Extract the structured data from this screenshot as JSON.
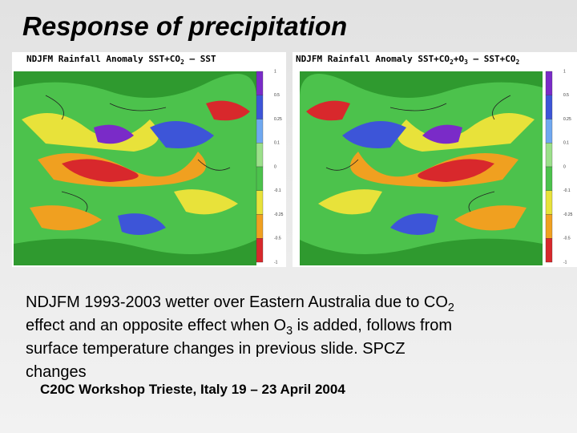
{
  "title": "Response of precipitation",
  "maps": [
    {
      "header": [
        {
          "text": "NDJFM Rainfall Anomaly SST+CO",
          "sub": "2"
        },
        {
          "text": " – SST"
        }
      ]
    },
    {
      "header": [
        {
          "text": "NDJFM Rainfall Anomaly SST+CO",
          "sub": "2"
        },
        {
          "text": "+O",
          "sub": "3"
        },
        {
          "text": " – SST+CO",
          "sub": "2"
        }
      ]
    }
  ],
  "colorbar_labels": [
    "1",
    "0.5",
    "0.25",
    "0.1",
    "0",
    "-0.1",
    "-0.25",
    "-0.5",
    "-1"
  ],
  "body": {
    "lines": [
      [
        {
          "text": "NDJFM 1993-2003 wetter over Eastern Australia due to CO",
          "sub": "2"
        }
      ],
      [
        {
          "text": "effect and an opposite effect when O",
          "sub": "3"
        },
        {
          "text": " is added, follows from"
        }
      ],
      [
        {
          "text": "surface temperature changes in previous slide. SPCZ"
        }
      ],
      [
        {
          "text": "changes"
        }
      ]
    ]
  },
  "footer": "C20C Workshop Trieste, Italy 19 – 23 April 2004"
}
